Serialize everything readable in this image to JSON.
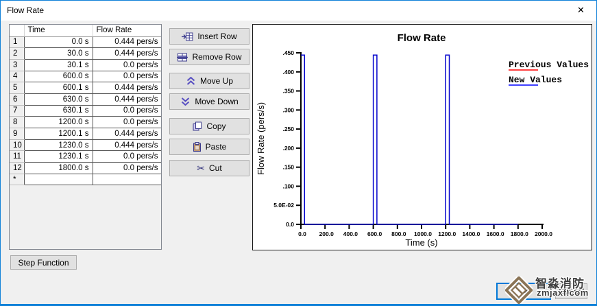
{
  "window": {
    "title": "Flow Rate",
    "close_icon": "✕"
  },
  "table": {
    "columns": [
      "Time",
      "Flow Rate"
    ],
    "rows": [
      {
        "n": "1",
        "time": "0.0 s",
        "flow": "0.444 pers/s"
      },
      {
        "n": "2",
        "time": "30.0 s",
        "flow": "0.444 pers/s"
      },
      {
        "n": "3",
        "time": "30.1 s",
        "flow": "0.0 pers/s"
      },
      {
        "n": "4",
        "time": "600.0 s",
        "flow": "0.0 pers/s"
      },
      {
        "n": "5",
        "time": "600.1 s",
        "flow": "0.444 pers/s"
      },
      {
        "n": "6",
        "time": "630.0 s",
        "flow": "0.444 pers/s"
      },
      {
        "n": "7",
        "time": "630.1 s",
        "flow": "0.0 pers/s"
      },
      {
        "n": "8",
        "time": "1200.0 s",
        "flow": "0.0 pers/s"
      },
      {
        "n": "9",
        "time": "1200.1 s",
        "flow": "0.444 pers/s"
      },
      {
        "n": "10",
        "time": "1230.0 s",
        "flow": "0.444 pers/s"
      },
      {
        "n": "11",
        "time": "1230.1 s",
        "flow": "0.0 pers/s"
      },
      {
        "n": "12",
        "time": "1800.0 s",
        "flow": "0.0 pers/s"
      },
      {
        "n": "*",
        "time": "",
        "flow": ""
      }
    ]
  },
  "buttons": {
    "insert": "Insert Row",
    "remove": "Remove Row",
    "move_up": "Move Up",
    "move_down": "Move Down",
    "copy": "Copy",
    "paste": "Paste",
    "cut": "Cut",
    "cut_icon": "✂",
    "step_function": "Step Function",
    "ok": "OK",
    "cancel": "Cancel"
  },
  "chart_data": {
    "type": "line",
    "title": "Flow Rate",
    "xlabel": "Time (s)",
    "ylabel": "Flow Rate (pers/s)",
    "xlim": [
      0,
      2000
    ],
    "ylim": [
      0,
      0.45
    ],
    "grid": false,
    "legend_position": "top-right",
    "xticks": {
      "values": [
        0,
        200,
        400,
        600,
        800,
        1000,
        1200,
        1400,
        1600,
        1800,
        2000
      ],
      "labels": [
        "0.0",
        "200.0",
        "400.0",
        "600.0",
        "800.0",
        "1000.0",
        "1200.0",
        "1400.0",
        "1600.0",
        "1800.0",
        "2000.0"
      ]
    },
    "yticks": {
      "values": [
        0,
        0.05,
        0.1,
        0.15,
        0.2,
        0.25,
        0.3,
        0.35,
        0.4,
        0.45
      ],
      "labels": [
        "0.0",
        "5.0E-02",
        ".100",
        ".150",
        ".200",
        ".250",
        ".300",
        ".350",
        ".400",
        ".450"
      ]
    },
    "series": [
      {
        "name": "New Values",
        "color": "#0000cc",
        "points": [
          [
            0,
            0.444
          ],
          [
            30,
            0.444
          ],
          [
            30.1,
            0
          ],
          [
            600,
            0
          ],
          [
            600.1,
            0.444
          ],
          [
            630,
            0.444
          ],
          [
            630.1,
            0
          ],
          [
            1200,
            0
          ],
          [
            1200.1,
            0.444
          ],
          [
            1230,
            0.444
          ],
          [
            1230.1,
            0
          ],
          [
            1800,
            0
          ]
        ]
      }
    ],
    "legend": [
      {
        "label": "Previous Values",
        "color": "#ff0000"
      },
      {
        "label": "New Values",
        "color": "#0000ff"
      }
    ]
  },
  "watermark": {
    "line1": "智淼消防",
    "line2": "zmjaxf.com"
  }
}
